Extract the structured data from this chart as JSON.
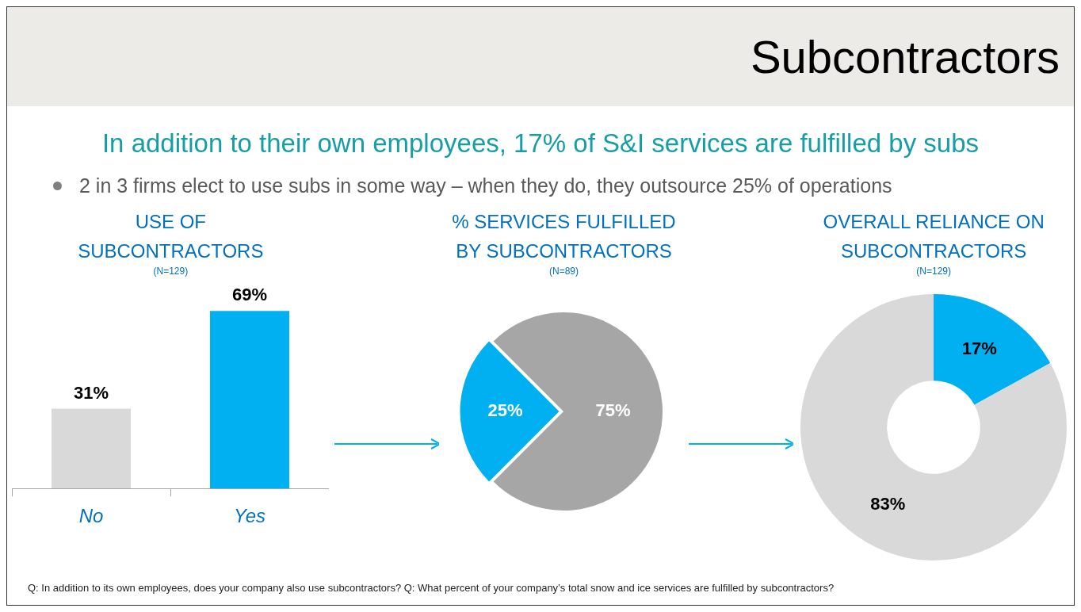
{
  "chart_data": [
    {
      "type": "other",
      "title": "Subcontractors",
      "subtitle": "In addition to their own employees, 17% of S&I services are fulfilled by subs",
      "annotations": [
        "2 in 3 firms elect to use subs in some way – when they do, they outsource 25% of operations",
        "Q: In addition to its own employees, does your company also use subcontractors?   Q: What percent of your company’s total snow and ice services are fulfilled by subcontractors?"
      ]
    },
    {
      "type": "bar",
      "title": "USE OF SUBCONTRACTORS",
      "subtitle": "(N=129)",
      "categories": [
        "No",
        "Yes"
      ],
      "values": [
        31,
        69
      ],
      "colors": [
        "#d9d9d9",
        "#00b0f0"
      ],
      "value_labels": [
        "31%",
        "69%"
      ]
    },
    {
      "type": "pie",
      "title": "% SERVICES FULFILLED BY SUBCONTRACTORS",
      "subtitle": "(N=89)",
      "categories": [
        null,
        null
      ],
      "values": [
        25,
        75
      ],
      "colors": [
        "#00b0f0",
        "#a6a6a6"
      ],
      "value_labels": [
        "25%",
        "75%"
      ]
    },
    {
      "type": "donut",
      "title": "OVERALL RELIANCE ON SUBCONTRACTORS",
      "subtitle": "(N=129)",
      "categories": [
        null,
        null
      ],
      "values": [
        17,
        83
      ],
      "colors": [
        "#00b0f0",
        "#d9d9d9"
      ],
      "value_labels": [
        "17%",
        "83%"
      ]
    }
  ]
}
